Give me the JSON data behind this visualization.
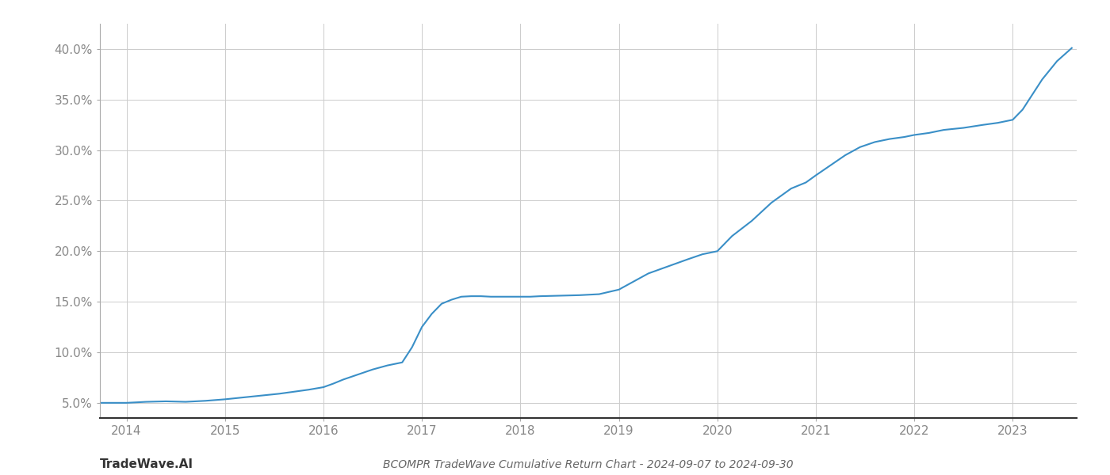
{
  "title": "BCOMPR TradeWave Cumulative Return Chart - 2024-09-07 to 2024-09-30",
  "watermark": "TradeWave.AI",
  "line_color": "#3a8fc7",
  "background_color": "#ffffff",
  "grid_color": "#cccccc",
  "x_values": [
    2013.73,
    2013.85,
    2014.0,
    2014.1,
    2014.2,
    2014.4,
    2014.6,
    2014.8,
    2015.0,
    2015.2,
    2015.4,
    2015.55,
    2015.7,
    2015.85,
    2016.0,
    2016.1,
    2016.2,
    2016.35,
    2016.5,
    2016.65,
    2016.8,
    2016.9,
    2017.0,
    2017.1,
    2017.2,
    2017.3,
    2017.4,
    2017.5,
    2017.6,
    2017.7,
    2017.8,
    2017.9,
    2018.0,
    2018.1,
    2018.2,
    2018.4,
    2018.6,
    2018.8,
    2019.0,
    2019.15,
    2019.3,
    2019.5,
    2019.7,
    2019.85,
    2020.0,
    2020.15,
    2020.35,
    2020.55,
    2020.75,
    2020.9,
    2021.0,
    2021.15,
    2021.3,
    2021.45,
    2021.6,
    2021.75,
    2021.9,
    2022.0,
    2022.15,
    2022.3,
    2022.5,
    2022.7,
    2022.85,
    2023.0,
    2023.1,
    2023.2,
    2023.3,
    2023.45,
    2023.6
  ],
  "y_values": [
    5.0,
    5.0,
    5.0,
    5.05,
    5.1,
    5.15,
    5.1,
    5.2,
    5.35,
    5.55,
    5.75,
    5.9,
    6.1,
    6.3,
    6.55,
    6.9,
    7.3,
    7.8,
    8.3,
    8.7,
    9.0,
    10.5,
    12.5,
    13.8,
    14.8,
    15.2,
    15.5,
    15.55,
    15.55,
    15.5,
    15.5,
    15.5,
    15.5,
    15.5,
    15.55,
    15.6,
    15.65,
    15.75,
    16.2,
    17.0,
    17.8,
    18.5,
    19.2,
    19.7,
    20.0,
    21.5,
    23.0,
    24.8,
    26.2,
    26.8,
    27.5,
    28.5,
    29.5,
    30.3,
    30.8,
    31.1,
    31.3,
    31.5,
    31.7,
    32.0,
    32.2,
    32.5,
    32.7,
    33.0,
    34.0,
    35.5,
    37.0,
    38.8,
    40.1
  ],
  "xtick_labels": [
    "2014",
    "2015",
    "2016",
    "2017",
    "2018",
    "2019",
    "2020",
    "2021",
    "2022",
    "2023"
  ],
  "xtick_positions": [
    2014,
    2015,
    2016,
    2017,
    2018,
    2019,
    2020,
    2021,
    2022,
    2023
  ],
  "ytick_values": [
    5.0,
    10.0,
    15.0,
    20.0,
    25.0,
    30.0,
    35.0,
    40.0
  ],
  "ytick_labels": [
    "5.0%",
    "10.0%",
    "15.0%",
    "20.0%",
    "25.0%",
    "30.0%",
    "35.0%",
    "40.0%"
  ],
  "ylim": [
    3.5,
    42.5
  ],
  "xlim": [
    2013.73,
    2023.65
  ],
  "line_width": 1.5,
  "title_fontsize": 10,
  "tick_fontsize": 11,
  "watermark_fontsize": 11
}
